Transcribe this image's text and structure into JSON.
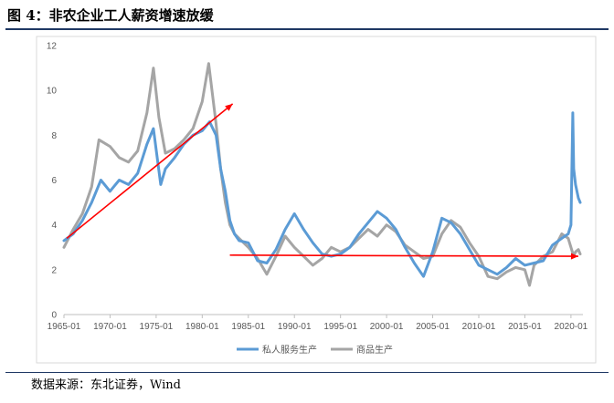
{
  "figure": {
    "title": "图 4：非农企业工人薪资增速放缓",
    "source": "数据来源：东北证券，Wind"
  },
  "colors": {
    "series_private": "#5b9bd5",
    "series_goods": "#a5a5a5",
    "annotation": "#ff0000",
    "rule": "#1f3864"
  },
  "chart_data": {
    "type": "line",
    "title": "",
    "xlabel": "",
    "ylabel": "",
    "xlim": [
      1965.0,
      2021.3
    ],
    "ylim": [
      0,
      12
    ],
    "yticks": [
      0,
      2,
      4,
      6,
      8,
      10,
      12
    ],
    "yticklabels": [
      "0",
      "2",
      "4",
      "6",
      "8",
      "10",
      "12"
    ],
    "xticks": [
      1965,
      1970,
      1975,
      1980,
      1985,
      1990,
      1995,
      2000,
      2005,
      2010,
      2015,
      2020
    ],
    "xticklabels": [
      "1965-01",
      "1970-01",
      "1975-01",
      "1980-01",
      "1985-01",
      "1990-01",
      "1995-01",
      "2000-01",
      "2005-01",
      "2010-01",
      "2015-01",
      "2020-01"
    ],
    "grid": false,
    "legend_position": "bottom",
    "series": [
      {
        "name": "私人服务生产",
        "color": "#5b9bd5",
        "x": [
          1965,
          1966,
          1967,
          1968,
          1969,
          1970,
          1971,
          1972,
          1973,
          1974,
          1974.7,
          1975.5,
          1976,
          1977,
          1978,
          1979,
          1980,
          1980.8,
          1981.5,
          1982,
          1982.5,
          1983,
          1983.5,
          1984,
          1985,
          1986,
          1987,
          1988,
          1989,
          1990,
          1991,
          1992,
          1993,
          1994,
          1995,
          1996,
          1997,
          1998,
          1999,
          2000,
          2001,
          2002,
          2003,
          2004,
          2005,
          2006,
          2007,
          2008,
          2009,
          2010,
          2011,
          2012,
          2013,
          2014,
          2015,
          2016,
          2017,
          2018,
          2019,
          2019.7,
          2020.0,
          2020.2,
          2020.3,
          2020.5,
          2020.8,
          2021.0
        ],
        "y": [
          3.3,
          3.6,
          4.2,
          5.0,
          6.0,
          5.5,
          6.0,
          5.8,
          6.3,
          7.6,
          8.3,
          5.8,
          6.5,
          7.0,
          7.6,
          8.0,
          8.2,
          8.6,
          8.0,
          6.5,
          5.5,
          4.2,
          3.6,
          3.3,
          3.2,
          2.4,
          2.3,
          2.9,
          3.8,
          4.5,
          3.8,
          3.2,
          2.7,
          2.6,
          2.7,
          3.0,
          3.6,
          4.1,
          4.6,
          4.3,
          3.8,
          3.0,
          2.3,
          1.7,
          2.8,
          4.3,
          4.1,
          3.6,
          2.9,
          2.2,
          2.0,
          1.8,
          2.1,
          2.5,
          2.2,
          2.3,
          2.4,
          3.1,
          3.4,
          3.6,
          4.0,
          9.0,
          6.5,
          5.8,
          5.2,
          5.0
        ]
      },
      {
        "name": "商品生产",
        "color": "#a5a5a5",
        "x": [
          1965,
          1966,
          1967,
          1968,
          1968.8,
          1970,
          1971,
          1972,
          1973,
          1974,
          1974.7,
          1975.3,
          1976,
          1977,
          1978,
          1979,
          1980,
          1980.7,
          1981.5,
          1982,
          1982.5,
          1983,
          1983.5,
          1984,
          1985,
          1986,
          1987,
          1988,
          1989,
          1990,
          1991,
          1992,
          1993,
          1994,
          1995,
          1996,
          1997,
          1998,
          1999,
          2000,
          2001,
          2002,
          2003,
          2004,
          2005,
          2006,
          2007,
          2008,
          2009,
          2010,
          2011,
          2012,
          2013,
          2014,
          2015,
          2015.5,
          2016,
          2017,
          2018,
          2019,
          2019.7,
          2020.0,
          2020.3,
          2020.5,
          2020.8,
          2021.0
        ],
        "y": [
          3.0,
          3.8,
          4.5,
          5.7,
          7.8,
          7.5,
          7.0,
          6.8,
          7.3,
          9.0,
          11.0,
          8.8,
          7.2,
          7.4,
          7.8,
          8.3,
          9.5,
          11.2,
          8.5,
          6.5,
          5.0,
          4.0,
          3.6,
          3.4,
          3.0,
          2.5,
          1.8,
          2.6,
          3.5,
          3.0,
          2.6,
          2.2,
          2.5,
          3.0,
          2.8,
          3.0,
          3.4,
          3.8,
          3.5,
          4.0,
          3.7,
          3.1,
          2.8,
          2.5,
          2.6,
          3.6,
          4.2,
          3.9,
          3.2,
          2.6,
          1.7,
          1.6,
          1.9,
          2.1,
          2.0,
          1.3,
          2.2,
          2.6,
          2.8,
          3.6,
          3.4,
          3.0,
          2.6,
          2.8,
          2.9,
          2.7
        ]
      }
    ],
    "annotations": [
      {
        "type": "arrow",
        "color": "#ff0000",
        "from": [
          1965.3,
          3.4
        ],
        "to": [
          1983.3,
          9.4
        ]
      },
      {
        "type": "arrow",
        "color": "#ff0000",
        "from": [
          1983.0,
          2.65
        ],
        "to": [
          2020.8,
          2.6
        ]
      }
    ]
  }
}
